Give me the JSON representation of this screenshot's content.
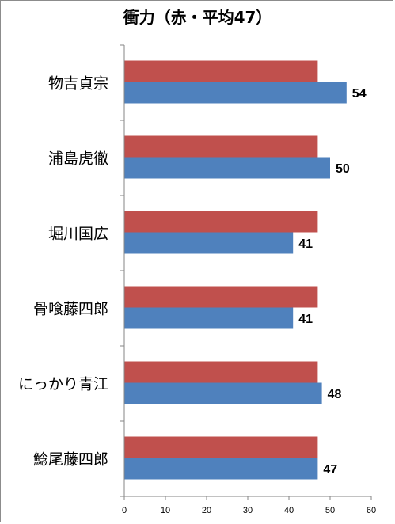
{
  "chart_data": {
    "type": "bar",
    "orientation": "horizontal",
    "title": "衝力（赤・平均47）",
    "categories": [
      "物吉貞宗",
      "浦島虎徹",
      "堀川国広",
      "骨喰藤四郎",
      "にっかり青江",
      "鯰尾藤四郎"
    ],
    "series": [
      {
        "values": [
          47,
          47,
          47,
          47,
          47,
          47
        ],
        "color": "#c0504d"
      },
      {
        "values": [
          54,
          50,
          41,
          41,
          48,
          47
        ],
        "color": "#4f81bd"
      }
    ],
    "data_labels_series": 1,
    "xlim": [
      0,
      60
    ],
    "xticks": [
      0,
      10,
      20,
      30,
      40,
      50,
      60
    ],
    "grid": false,
    "legend": "none"
  }
}
